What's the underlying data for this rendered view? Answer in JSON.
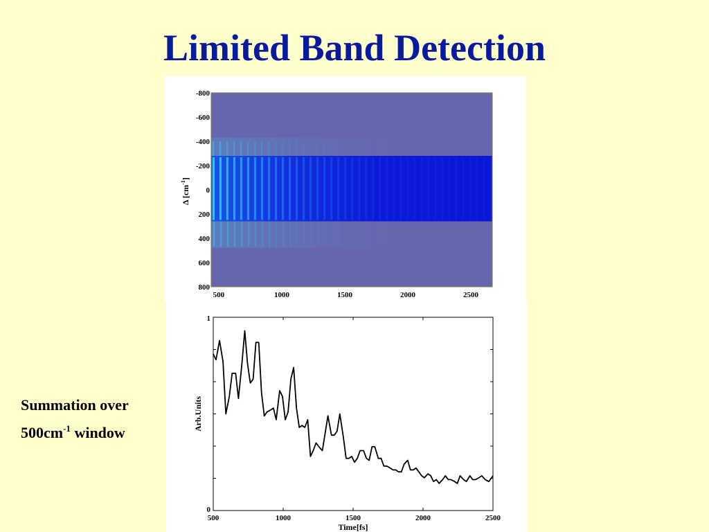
{
  "title": "Limited Band Detection",
  "side_label": {
    "line1": "Summation over",
    "line2_prefix": "500cm",
    "line2_sup": "-1",
    "line2_suffix": " window"
  },
  "colors": {
    "title": "#0a1a9c",
    "background": "#ffffcc",
    "heatmap_background": "#6666b0",
    "band": "#0a14d8",
    "signal": "#30e0ff"
  },
  "chart_data": [
    {
      "type": "heatmap",
      "title": "",
      "xlabel": "",
      "ylabel_main": "Δ [cm",
      "ylabel_sup": "-1",
      "ylabel_end": "]",
      "xlim": [
        440,
        2670
      ],
      "ylim": [
        -800,
        800
      ],
      "x_ticks": [
        500,
        1000,
        1500,
        2000,
        2500
      ],
      "y_ticks": [
        -800,
        -600,
        -400,
        -200,
        0,
        200,
        400,
        600,
        800
      ],
      "y_tick_labels": [
        "-800",
        "-600",
        "-400",
        "-200",
        "0",
        "200",
        "400",
        "600",
        "800"
      ],
      "highlight_band": [
        -280,
        260
      ],
      "stripe_period": 55
    },
    {
      "type": "line",
      "title": "",
      "xlabel": "Time[fs]",
      "ylabel": "Arb.Units",
      "xlim": [
        500,
        2500
      ],
      "ylim": [
        0,
        1
      ],
      "x_ticks": [
        500,
        1000,
        1500,
        2000,
        2500
      ],
      "y_ticks": [
        0,
        1
      ],
      "x": [
        500,
        520,
        545,
        570,
        590,
        615,
        635,
        660,
        680,
        705,
        725,
        745,
        765,
        785,
        805,
        825,
        845,
        865,
        885,
        910,
        930,
        950,
        975,
        995,
        1015,
        1035,
        1055,
        1075,
        1095,
        1115,
        1135,
        1155,
        1175,
        1195,
        1215,
        1235,
        1255,
        1280,
        1300,
        1320,
        1345,
        1365,
        1385,
        1405,
        1430,
        1450,
        1470,
        1490,
        1510,
        1530,
        1550,
        1575,
        1595,
        1615,
        1635,
        1655,
        1680,
        1700,
        1720,
        1740,
        1765,
        1785,
        1805,
        1825,
        1845,
        1865,
        1890,
        1910,
        1930,
        1950,
        1970,
        1990,
        2010,
        2035,
        2055,
        2075,
        2095,
        2115,
        2140,
        2160,
        2180,
        2200,
        2225,
        2245,
        2265,
        2290,
        2310,
        2335,
        2355,
        2375,
        2400,
        2420,
        2445,
        2470,
        2500
      ],
      "y": [
        0.81,
        0.78,
        0.88,
        0.77,
        0.5,
        0.59,
        0.71,
        0.71,
        0.58,
        0.76,
        0.93,
        0.76,
        0.66,
        0.68,
        0.87,
        0.87,
        0.61,
        0.49,
        0.51,
        0.52,
        0.53,
        0.47,
        0.62,
        0.59,
        0.47,
        0.51,
        0.68,
        0.74,
        0.53,
        0.43,
        0.44,
        0.43,
        0.47,
        0.28,
        0.31,
        0.35,
        0.33,
        0.31,
        0.4,
        0.49,
        0.39,
        0.39,
        0.41,
        0.5,
        0.38,
        0.27,
        0.27,
        0.28,
        0.25,
        0.27,
        0.31,
        0.31,
        0.27,
        0.26,
        0.33,
        0.33,
        0.27,
        0.27,
        0.23,
        0.23,
        0.22,
        0.21,
        0.21,
        0.2,
        0.2,
        0.24,
        0.26,
        0.21,
        0.21,
        0.22,
        0.2,
        0.18,
        0.17,
        0.19,
        0.18,
        0.15,
        0.16,
        0.14,
        0.16,
        0.18,
        0.16,
        0.16,
        0.15,
        0.14,
        0.18,
        0.16,
        0.15,
        0.18,
        0.16,
        0.16,
        0.17,
        0.18,
        0.16,
        0.15,
        0.18
      ]
    }
  ]
}
